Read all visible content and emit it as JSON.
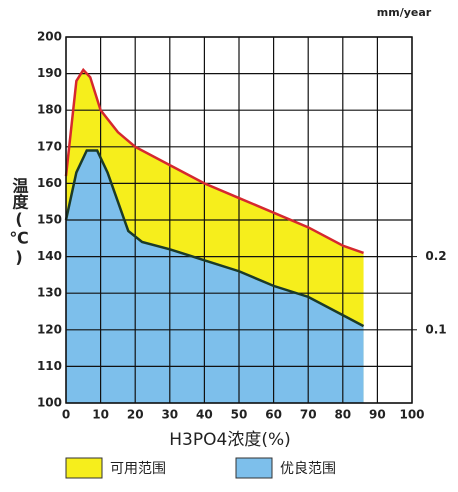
{
  "chart_data": {
    "type": "area",
    "x_label": "H3PO4浓度(%)",
    "y_label": "温度(℃)",
    "y2_label": "mm/year",
    "xlim": [
      0,
      100
    ],
    "xticks": [
      0,
      10,
      20,
      30,
      40,
      50,
      60,
      70,
      80,
      90,
      100
    ],
    "ylim": [
      100,
      200
    ],
    "yticks": [
      100,
      110,
      120,
      130,
      140,
      150,
      160,
      170,
      180,
      190,
      200
    ],
    "y2lim": [
      0,
      0.5
    ],
    "y2ticks": [
      0.1,
      0.2
    ],
    "grid": true,
    "series": [
      {
        "name": "可用范围",
        "color": "#f6ee1c",
        "line_color": "#d6282e",
        "x": [
          0,
          3,
          5,
          7,
          10,
          15,
          20,
          30,
          40,
          50,
          60,
          70,
          80,
          86
        ],
        "values": [
          162,
          188,
          191,
          189,
          180,
          174,
          170,
          165,
          160,
          156,
          152,
          148,
          143,
          141
        ]
      },
      {
        "name": "优良范围",
        "color": "#7dbfeb",
        "line_color": "#1b3a28",
        "x": [
          0,
          3,
          6,
          9,
          12,
          15,
          18,
          22,
          30,
          40,
          50,
          60,
          70,
          80,
          86
        ],
        "values": [
          150,
          163,
          169,
          169,
          163,
          155,
          147,
          144,
          142,
          139,
          136,
          132,
          129,
          124,
          121
        ]
      }
    ]
  }
}
